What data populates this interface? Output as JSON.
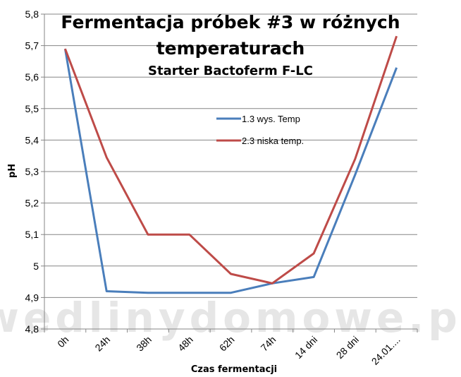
{
  "chart_data": {
    "type": "line",
    "title": "Fermentacja próbek #3 w różnych temperaturach",
    "title_lines": [
      "Fermentacja próbek #3 w różnych",
      "temperaturach"
    ],
    "subtitle": "Starter Bactoferm F-LC",
    "xlabel": "Czas fermentacji",
    "ylabel": "pH",
    "categories": [
      "0h",
      "24h",
      "38h",
      "48h",
      "62h",
      "74h",
      "14 dni",
      "28 dni",
      "24.01...."
    ],
    "ylim": [
      4.8,
      5.8
    ],
    "yticks": [
      "4,8",
      "4,9",
      "5",
      "5,1",
      "5,2",
      "5,3",
      "5,4",
      "5,5",
      "5,6",
      "5,7",
      "5,8"
    ],
    "ytick_values": [
      4.8,
      4.9,
      5.0,
      5.1,
      5.2,
      5.3,
      5.4,
      5.5,
      5.6,
      5.7,
      5.8
    ],
    "grid": true,
    "legend_position": "center-right",
    "series": [
      {
        "name": "1.3 wys. Temp",
        "color": "#4a7ebb",
        "values": [
          5.69,
          4.92,
          4.915,
          4.915,
          4.915,
          4.945,
          4.965,
          5.29,
          5.63
        ]
      },
      {
        "name": "2.3 niska temp.",
        "color": "#be4b48",
        "values": [
          5.69,
          5.345,
          5.1,
          5.1,
          4.975,
          4.945,
          5.04,
          5.34,
          5.73
        ]
      }
    ]
  },
  "watermark": "wedlinydomowe.pl"
}
